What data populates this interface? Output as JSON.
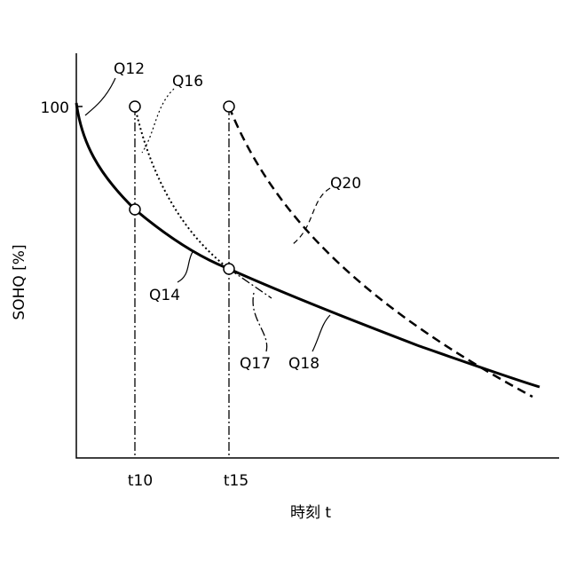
{
  "axes": {
    "y_label": "SOHQ [%]",
    "x_label": "時刻 t",
    "y_tick": "100",
    "x_ticks": [
      "t10",
      "t15"
    ]
  },
  "curve_labels": [
    "Q12",
    "Q16",
    "Q20",
    "Q14",
    "Q17",
    "Q18"
  ]
}
